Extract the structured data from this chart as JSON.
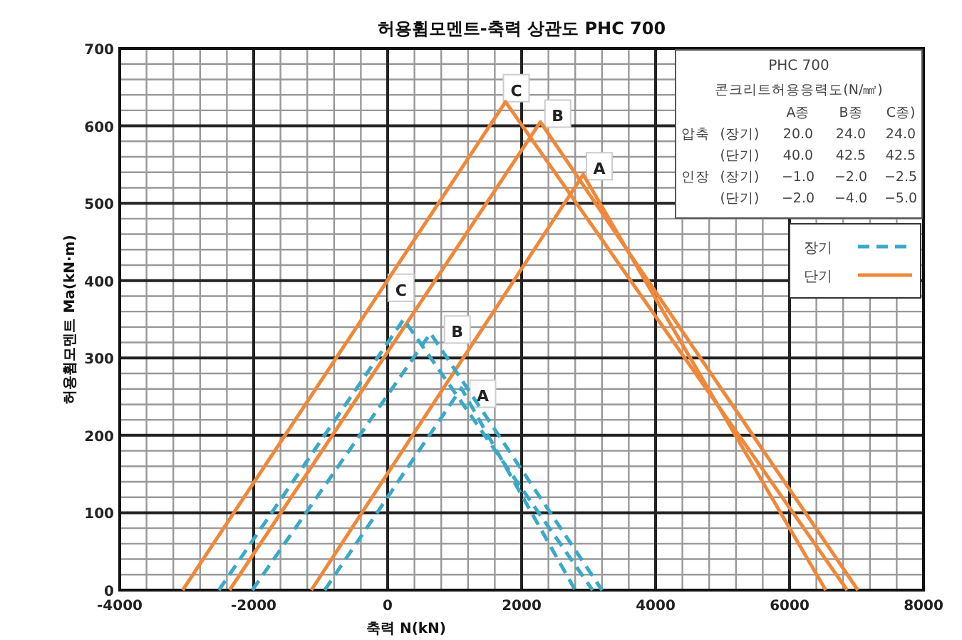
{
  "chart_data": {
    "type": "line",
    "title": "허용휨모멘트-축력 상관도 PHC 700",
    "xlabel": "축력 N(kN)",
    "ylabel": "허용휨모멘트 Ma(kN·m)",
    "xlim": [
      -4000,
      8000
    ],
    "xticks": [
      -4000,
      -2000,
      0,
      2000,
      4000,
      6000,
      8000
    ],
    "ylim": [
      0,
      700
    ],
    "yticks": [
      0,
      100,
      200,
      300,
      400,
      500,
      600,
      700
    ],
    "grid": true,
    "legend": "top right",
    "series": [
      {
        "name": "단기",
        "color": "#f0883a",
        "line_style": "solid",
        "x": [
          -3060,
          1760,
          6860
        ],
        "values": [
          0,
          631,
          0
        ]
      },
      {
        "color": "#f0883a",
        "line_style": "solid",
        "x": [
          -2360,
          2280,
          7020
        ],
        "values": [
          0,
          605,
          0
        ]
      },
      {
        "color": "#f0883a",
        "line_style": "solid",
        "x": [
          -1140,
          2920,
          6540
        ],
        "values": [
          0,
          537,
          0
        ]
      },
      {
        "name": "장기",
        "color": "#3aa9c8",
        "line_style": "dashed",
        "x": [
          -2520,
          240,
          3060
        ],
        "values": [
          0,
          350,
          0
        ]
      },
      {
        "color": "#3aa9c8",
        "line_style": "dashed",
        "x": [
          -2020,
          640,
          3200
        ],
        "values": [
          0,
          332,
          0
        ]
      },
      {
        "color": "#3aa9c8",
        "line_style": "dashed",
        "x": [
          -940,
          1100,
          2800
        ],
        "values": [
          0,
          261,
          0
        ]
      }
    ],
    "annotations": [
      {
        "text": "C",
        "x": 1920,
        "y": 646
      },
      {
        "text": "B",
        "x": 2540,
        "y": 613
      },
      {
        "text": "A",
        "x": 3160,
        "y": 545
      },
      {
        "text": "C",
        "x": 200,
        "y": 388
      },
      {
        "text": "B",
        "x": 1040,
        "y": 334
      },
      {
        "text": "A",
        "x": 1420,
        "y": 251
      },
      "PHC 700",
      "콘크리트허용응력도(N/㎟)",
      "A종",
      "B종",
      "C종)",
      "압축",
      "(장기)",
      "20.0",
      "24.0",
      "24.0",
      "(단기)",
      "40.0",
      "42.5",
      "42.5",
      "인장",
      "(장기)",
      "−1.0",
      "−2.0",
      "−2.5",
      "(단기)",
      "−2.0",
      "−4.0",
      "−5.0"
    ]
  }
}
